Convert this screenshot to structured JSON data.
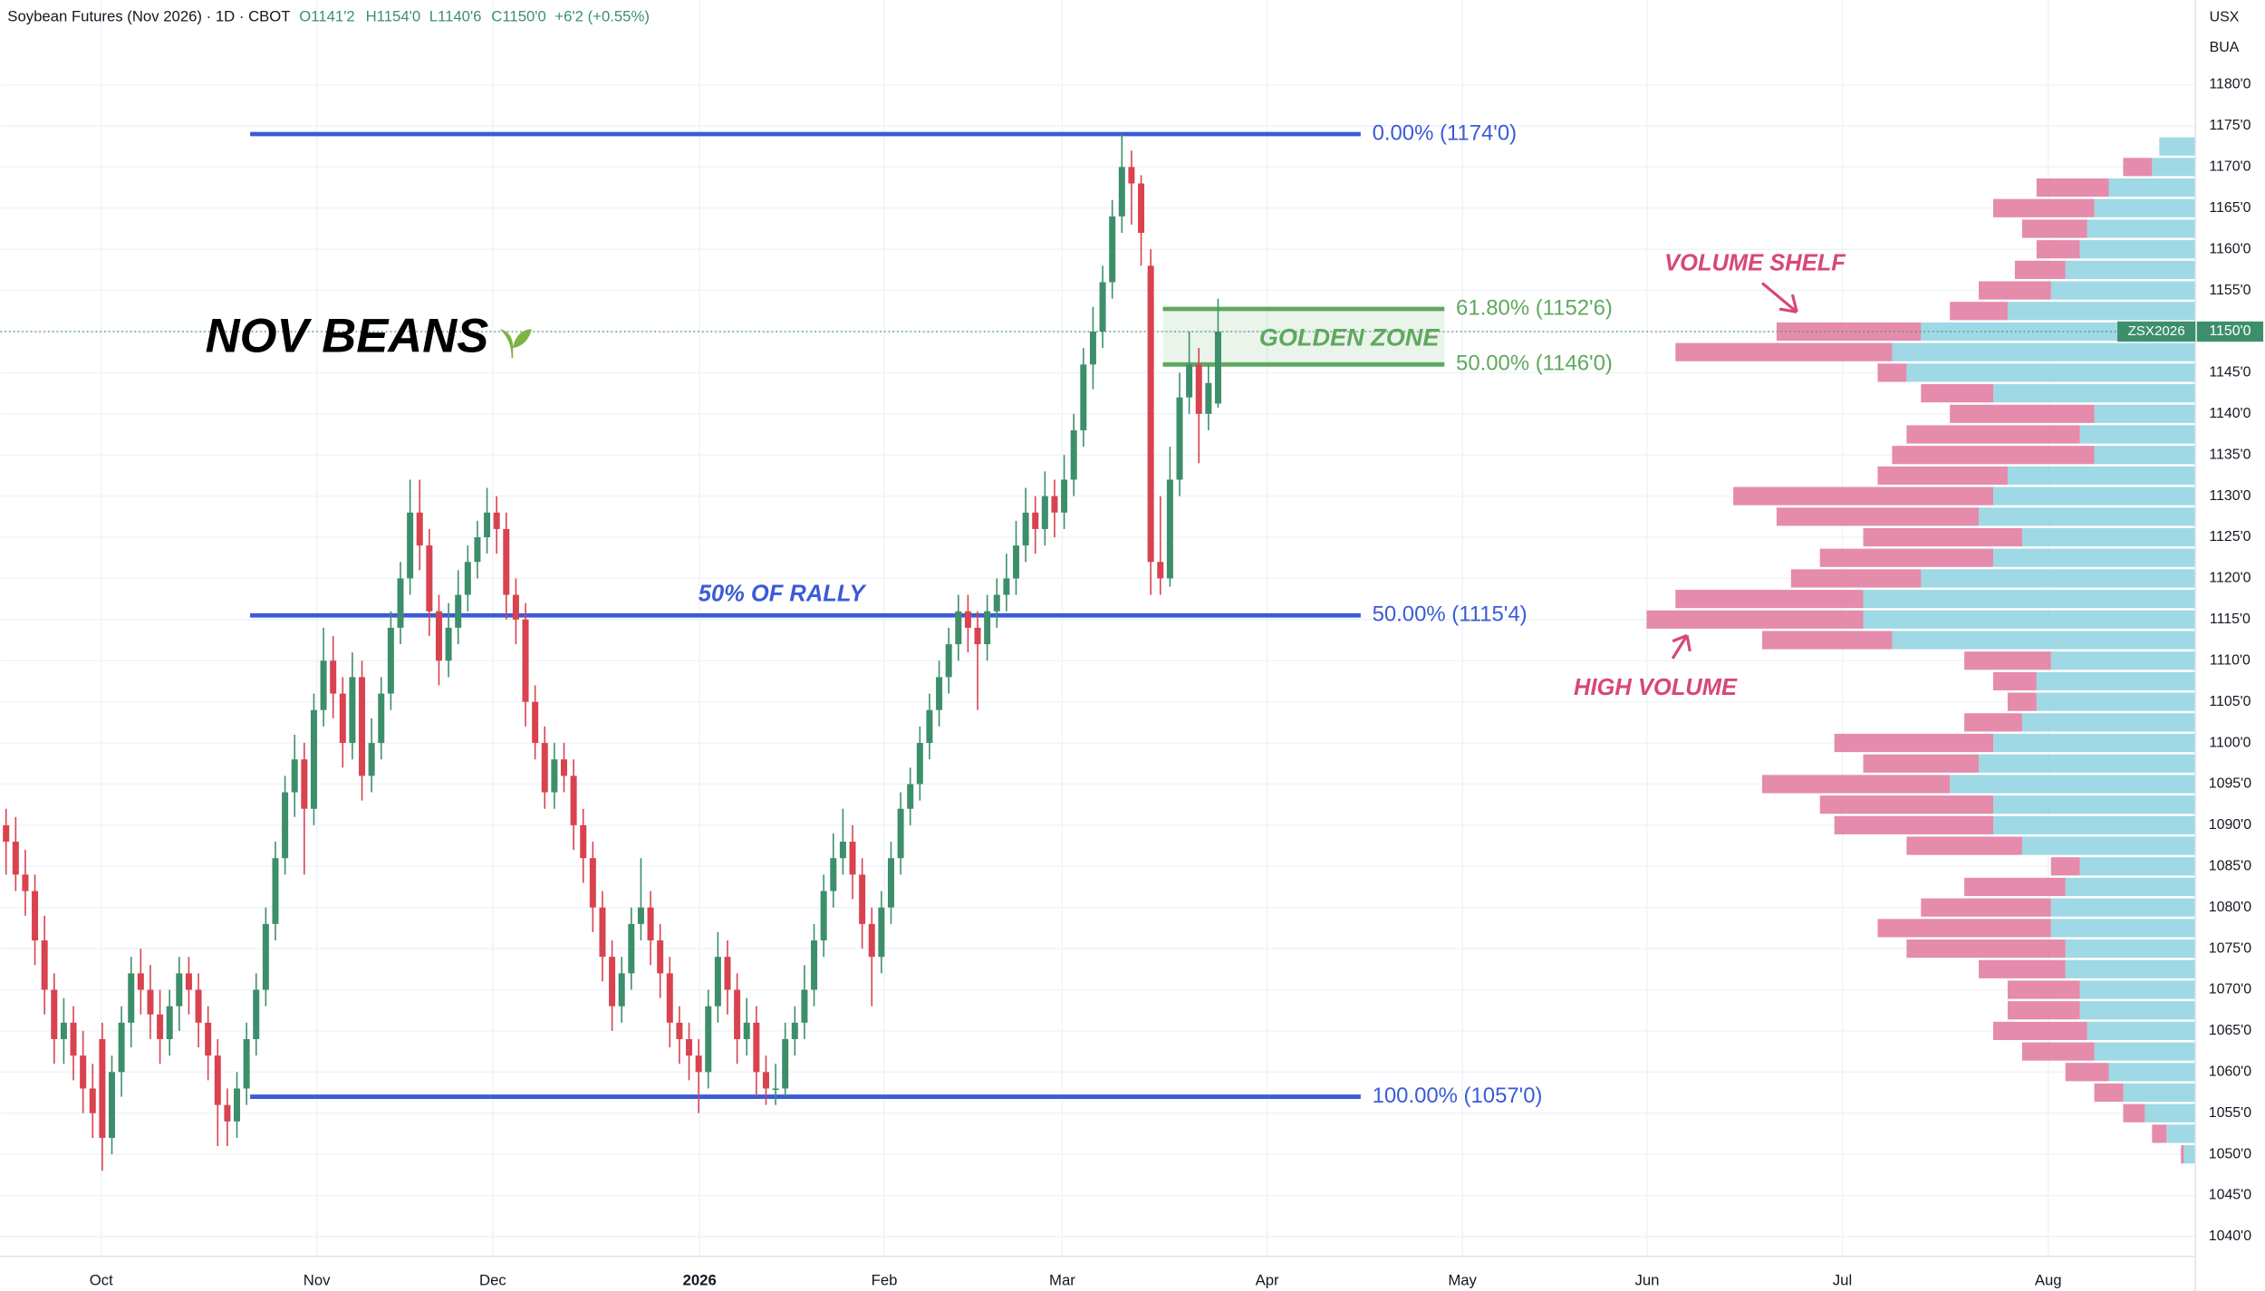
{
  "chart_data": {
    "type": "candlestick",
    "title": "Soybean Futures (Nov 2026) · 1D · CBOT",
    "header_values": [
      "O1141'2",
      "H1154'0",
      "L1140'6",
      "C1150'0",
      "+6'2 (+0.55%)"
    ],
    "currency": "USX",
    "unit": "BUA",
    "symbol_tag": "ZSX2026",
    "last_price": {
      "value": 1150,
      "label": "1150'0"
    },
    "up_color": "#3d8f6c",
    "down_color": "#d9434f",
    "grid": true,
    "xlim": [
      -0.6,
      227.6
    ],
    "xticks": [
      {
        "value": 9.9,
        "label": "Oct"
      },
      {
        "value": 32.3,
        "label": "Nov"
      },
      {
        "value": 50.6,
        "label": "Dec"
      },
      {
        "value": 72.1,
        "label": "2026"
      },
      {
        "value": 91.3,
        "label": "Feb"
      },
      {
        "value": 109.8,
        "label": "Mar"
      },
      {
        "value": 131.1,
        "label": "Apr"
      },
      {
        "value": 151.4,
        "label": "May"
      },
      {
        "value": 170.6,
        "label": "Jun"
      },
      {
        "value": 190.9,
        "label": "Jul"
      },
      {
        "value": 212.3,
        "label": "Aug"
      }
    ],
    "ylim": [
      1037.6,
      1190.3
    ],
    "yticks": [
      {
        "value": 1040,
        "label": "1040'0"
      },
      {
        "value": 1045,
        "label": "1045'0"
      },
      {
        "value": 1050,
        "label": "1050'0"
      },
      {
        "value": 1055,
        "label": "1055'0"
      },
      {
        "value": 1060,
        "label": "1060'0"
      },
      {
        "value": 1065,
        "label": "1065'0"
      },
      {
        "value": 1070,
        "label": "1070'0"
      },
      {
        "value": 1075,
        "label": "1075'0"
      },
      {
        "value": 1080,
        "label": "1080'0"
      },
      {
        "value": 1085,
        "label": "1085'0"
      },
      {
        "value": 1090,
        "label": "1090'0"
      },
      {
        "value": 1095,
        "label": "1095'0"
      },
      {
        "value": 1100,
        "label": "1100'0"
      },
      {
        "value": 1105,
        "label": "1105'0"
      },
      {
        "value": 1110,
        "label": "1110'0"
      },
      {
        "value": 1115,
        "label": "1115'0"
      },
      {
        "value": 1120,
        "label": "1120'0"
      },
      {
        "value": 1125,
        "label": "1125'0"
      },
      {
        "value": 1130,
        "label": "1130'0"
      },
      {
        "value": 1135,
        "label": "1135'0"
      },
      {
        "value": 1140,
        "label": "1140'0"
      },
      {
        "value": 1145,
        "label": "1145'0"
      },
      {
        "value": 1150,
        "label": "1150'0"
      },
      {
        "value": 1155,
        "label": "1155'0"
      },
      {
        "value": 1160,
        "label": "1160'0"
      },
      {
        "value": 1165,
        "label": "1165'0"
      },
      {
        "value": 1170,
        "label": "1170'0"
      },
      {
        "value": 1175,
        "label": "1175'0"
      },
      {
        "value": 1180,
        "label": "1180'0"
      }
    ],
    "ohlc": [
      [
        1090,
        1092,
        1084,
        1088
      ],
      [
        1088,
        1091,
        1082,
        1084
      ],
      [
        1084,
        1087,
        1079,
        1082
      ],
      [
        1082,
        1084,
        1073,
        1076
      ],
      [
        1076,
        1079,
        1067,
        1070
      ],
      [
        1070,
        1072,
        1061,
        1064
      ],
      [
        1064,
        1069,
        1061,
        1066
      ],
      [
        1066,
        1068,
        1059,
        1062
      ],
      [
        1062,
        1065,
        1055,
        1058
      ],
      [
        1058,
        1061,
        1052,
        1055
      ],
      [
        1064,
        1066,
        1048,
        1052
      ],
      [
        1052,
        1062,
        1050,
        1060
      ],
      [
        1060,
        1068,
        1057,
        1066
      ],
      [
        1066,
        1074,
        1063,
        1072
      ],
      [
        1072,
        1075,
        1067,
        1070
      ],
      [
        1070,
        1073,
        1064,
        1067
      ],
      [
        1067,
        1070,
        1061,
        1064
      ],
      [
        1064,
        1070,
        1062,
        1068
      ],
      [
        1068,
        1074,
        1065,
        1072
      ],
      [
        1072,
        1074,
        1067,
        1070
      ],
      [
        1070,
        1072,
        1063,
        1066
      ],
      [
        1066,
        1068,
        1059,
        1062
      ],
      [
        1062,
        1064,
        1051,
        1056
      ],
      [
        1056,
        1058,
        1051,
        1054
      ],
      [
        1054,
        1060,
        1052,
        1058
      ],
      [
        1058,
        1066,
        1056,
        1064
      ],
      [
        1064,
        1072,
        1062,
        1070
      ],
      [
        1070,
        1080,
        1068,
        1078
      ],
      [
        1078,
        1088,
        1076,
        1086
      ],
      [
        1086,
        1096,
        1084,
        1094
      ],
      [
        1094,
        1101,
        1091,
        1098
      ],
      [
        1098,
        1100,
        1084,
        1092
      ],
      [
        1092,
        1106,
        1090,
        1104
      ],
      [
        1104,
        1114,
        1102,
        1110
      ],
      [
        1110,
        1113,
        1103,
        1106
      ],
      [
        1106,
        1108,
        1097,
        1100
      ],
      [
        1100,
        1111,
        1098,
        1108
      ],
      [
        1108,
        1110,
        1093,
        1096
      ],
      [
        1096,
        1103,
        1094,
        1100
      ],
      [
        1100,
        1108,
        1098,
        1106
      ],
      [
        1106,
        1116,
        1104,
        1114
      ],
      [
        1114,
        1122,
        1112,
        1120
      ],
      [
        1120,
        1132,
        1118,
        1128
      ],
      [
        1128,
        1132,
        1121,
        1124
      ],
      [
        1124,
        1126,
        1113,
        1116
      ],
      [
        1116,
        1118,
        1107,
        1110
      ],
      [
        1110,
        1117,
        1108,
        1114
      ],
      [
        1114,
        1121,
        1112,
        1118
      ],
      [
        1118,
        1124,
        1116,
        1122
      ],
      [
        1122,
        1127,
        1120,
        1125
      ],
      [
        1125,
        1131,
        1123,
        1128
      ],
      [
        1128,
        1130,
        1123,
        1126
      ],
      [
        1126,
        1128,
        1115,
        1118
      ],
      [
        1118,
        1120,
        1112,
        1115
      ],
      [
        1115,
        1117,
        1102,
        1105
      ],
      [
        1105,
        1107,
        1098,
        1100
      ],
      [
        1100,
        1102,
        1092,
        1094
      ],
      [
        1094,
        1100,
        1092,
        1098
      ],
      [
        1098,
        1100,
        1094,
        1096
      ],
      [
        1096,
        1098,
        1087,
        1090
      ],
      [
        1090,
        1092,
        1083,
        1086
      ],
      [
        1086,
        1088,
        1077,
        1080
      ],
      [
        1080,
        1082,
        1071,
        1074
      ],
      [
        1074,
        1076,
        1065,
        1068
      ],
      [
        1068,
        1074,
        1066,
        1072
      ],
      [
        1072,
        1080,
        1070,
        1078
      ],
      [
        1078,
        1086,
        1076,
        1080
      ],
      [
        1080,
        1082,
        1073,
        1076
      ],
      [
        1076,
        1078,
        1069,
        1072
      ],
      [
        1072,
        1074,
        1063,
        1066
      ],
      [
        1066,
        1068,
        1061,
        1064
      ],
      [
        1064,
        1066,
        1059,
        1062
      ],
      [
        1062,
        1064,
        1055,
        1060
      ],
      [
        1060,
        1070,
        1058,
        1068
      ],
      [
        1068,
        1077,
        1066,
        1074
      ],
      [
        1074,
        1076,
        1067,
        1070
      ],
      [
        1070,
        1072,
        1061,
        1064
      ],
      [
        1064,
        1069,
        1062,
        1066
      ],
      [
        1066,
        1068,
        1057,
        1060
      ],
      [
        1060,
        1062,
        1056,
        1058
      ],
      [
        1058,
        1061,
        1056,
        1058
      ],
      [
        1058,
        1066,
        1057,
        1064
      ],
      [
        1064,
        1068,
        1062,
        1066
      ],
      [
        1066,
        1073,
        1064,
        1070
      ],
      [
        1070,
        1078,
        1068,
        1076
      ],
      [
        1076,
        1084,
        1074,
        1082
      ],
      [
        1082,
        1089,
        1080,
        1086
      ],
      [
        1086,
        1092,
        1084,
        1088
      ],
      [
        1088,
        1090,
        1081,
        1084
      ],
      [
        1084,
        1086,
        1075,
        1078
      ],
      [
        1078,
        1080,
        1068,
        1074
      ],
      [
        1074,
        1082,
        1072,
        1080
      ],
      [
        1080,
        1088,
        1078,
        1086
      ],
      [
        1086,
        1094,
        1084,
        1092
      ],
      [
        1092,
        1097,
        1090,
        1095
      ],
      [
        1095,
        1102,
        1093,
        1100
      ],
      [
        1100,
        1106,
        1098,
        1104
      ],
      [
        1104,
        1110,
        1102,
        1108
      ],
      [
        1108,
        1114,
        1106,
        1112
      ],
      [
        1112,
        1118,
        1110,
        1116
      ],
      [
        1116,
        1118,
        1111,
        1114
      ],
      [
        1114,
        1116,
        1104,
        1112
      ],
      [
        1112,
        1118,
        1110,
        1116
      ],
      [
        1116,
        1120,
        1114,
        1118
      ],
      [
        1118,
        1123,
        1116,
        1120
      ],
      [
        1120,
        1127,
        1118,
        1124
      ],
      [
        1124,
        1131,
        1122,
        1128
      ],
      [
        1128,
        1130,
        1123,
        1126
      ],
      [
        1126,
        1133,
        1124,
        1130
      ],
      [
        1130,
        1132,
        1125,
        1128
      ],
      [
        1128,
        1135,
        1126,
        1132
      ],
      [
        1132,
        1140,
        1130,
        1138
      ],
      [
        1138,
        1148,
        1136,
        1146
      ],
      [
        1146,
        1153,
        1143,
        1150
      ],
      [
        1150,
        1158,
        1148,
        1156
      ],
      [
        1156,
        1166,
        1154,
        1164
      ],
      [
        1164,
        1174,
        1162,
        1170
      ],
      [
        1170,
        1172,
        1163,
        1168
      ],
      [
        1168,
        1169,
        1158,
        1162
      ],
      [
        1158,
        1160,
        1118,
        1122
      ],
      [
        1122,
        1130,
        1118,
        1120
      ],
      [
        1120,
        1136,
        1119,
        1132
      ],
      [
        1132,
        1145,
        1130,
        1142
      ],
      [
        1142,
        1150,
        1140,
        1146
      ],
      [
        1146,
        1148,
        1134,
        1140
      ],
      [
        1140,
        1146,
        1138,
        1143.75
      ],
      [
        1141.25,
        1154,
        1140.75,
        1150
      ]
    ],
    "volume_profile": {
      "up_color": "#93d5e2",
      "down_color": "#e27ea2",
      "price": [
        1172.5,
        1170,
        1167.5,
        1165,
        1162.5,
        1160,
        1157.5,
        1155,
        1152.5,
        1150,
        1147.5,
        1145,
        1142.5,
        1140,
        1137.5,
        1135,
        1132.5,
        1130,
        1127.5,
        1125,
        1122.5,
        1120,
        1117.5,
        1115,
        1112.5,
        1110,
        1107.5,
        1105,
        1102.5,
        1100,
        1097.5,
        1095,
        1092.5,
        1090,
        1087.5,
        1085,
        1082.5,
        1080,
        1077.5,
        1075,
        1072.5,
        1070,
        1067.5,
        1065,
        1062.5,
        1060,
        1057.5,
        1055,
        1052.5,
        1050
      ],
      "up": [
        25,
        30,
        60,
        70,
        75,
        80,
        90,
        100,
        130,
        190,
        210,
        200,
        140,
        70,
        80,
        70,
        130,
        140,
        150,
        120,
        140,
        190,
        230,
        230,
        210,
        100,
        110,
        110,
        120,
        140,
        150,
        170,
        140,
        140,
        120,
        80,
        90,
        100,
        100,
        90,
        90,
        80,
        80,
        75,
        70,
        60,
        50,
        35,
        20,
        8
      ],
      "down": [
        0,
        20,
        50,
        70,
        45,
        30,
        35,
        50,
        40,
        100,
        150,
        20,
        50,
        100,
        120,
        140,
        90,
        180,
        140,
        110,
        120,
        90,
        130,
        150,
        90,
        60,
        30,
        20,
        40,
        110,
        80,
        130,
        120,
        110,
        80,
        20,
        70,
        90,
        120,
        110,
        60,
        50,
        50,
        65,
        50,
        30,
        20,
        15,
        10,
        2
      ]
    },
    "levels": [
      {
        "label": "0.00% (1174'0)",
        "value": 1174,
        "color": "#3b5bd6"
      },
      {
        "label": "61.80% (1152'6)",
        "value": 1152.75,
        "color": "#5fa85f"
      },
      {
        "label": "50.00% (1146'0)",
        "value": 1146,
        "color": "#5fa85f"
      },
      {
        "label": "50.00% (1115'4)",
        "value": 1115.5,
        "color": "#3b5bd6"
      },
      {
        "label": "100.00% (1057'0)",
        "value": 1057,
        "color": "#3b5bd6"
      }
    ],
    "annotations": [
      {
        "text": "NOV BEANS",
        "color": "#000000"
      },
      {
        "text": "GOLDEN ZONE",
        "color": "#5fa85f"
      },
      {
        "text": "VOLUME SHELF",
        "color": "#d64877"
      },
      {
        "text": "50% OF RALLY",
        "color": "#3b5bd6"
      },
      {
        "text": "HIGH VOLUME",
        "color": "#d64877"
      }
    ]
  }
}
